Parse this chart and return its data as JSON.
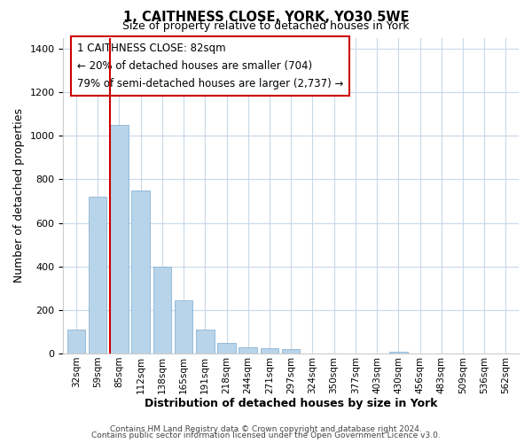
{
  "title": "1, CAITHNESS CLOSE, YORK, YO30 5WE",
  "subtitle": "Size of property relative to detached houses in York",
  "xlabel": "Distribution of detached houses by size in York",
  "ylabel": "Number of detached properties",
  "bar_color": "#b8d4ea",
  "bar_edge_color": "#8ab4d4",
  "categories": [
    "32sqm",
    "59sqm",
    "85sqm",
    "112sqm",
    "138sqm",
    "165sqm",
    "191sqm",
    "218sqm",
    "244sqm",
    "271sqm",
    "297sqm",
    "324sqm",
    "350sqm",
    "377sqm",
    "403sqm",
    "430sqm",
    "456sqm",
    "483sqm",
    "509sqm",
    "536sqm",
    "562sqm"
  ],
  "values": [
    110,
    720,
    1050,
    750,
    400,
    245,
    110,
    50,
    30,
    25,
    20,
    0,
    0,
    0,
    0,
    10,
    0,
    0,
    0,
    0,
    0
  ],
  "ylim": [
    0,
    1450
  ],
  "yticks": [
    0,
    200,
    400,
    600,
    800,
    1000,
    1200,
    1400
  ],
  "vline_index": 2,
  "vline_color": "#cc0000",
  "annotation_title": "1 CAITHNESS CLOSE: 82sqm",
  "annotation_line1": "← 20% of detached houses are smaller (704)",
  "annotation_line2": "79% of semi-detached houses are larger (2,737) →",
  "annotation_box_color": "#ffffff",
  "annotation_box_edgecolor": "#cc0000",
  "footer1": "Contains HM Land Registry data © Crown copyright and database right 2024.",
  "footer2": "Contains public sector information licensed under the Open Government Licence v3.0.",
  "background_color": "#ffffff",
  "grid_color": "#c8d8e8"
}
